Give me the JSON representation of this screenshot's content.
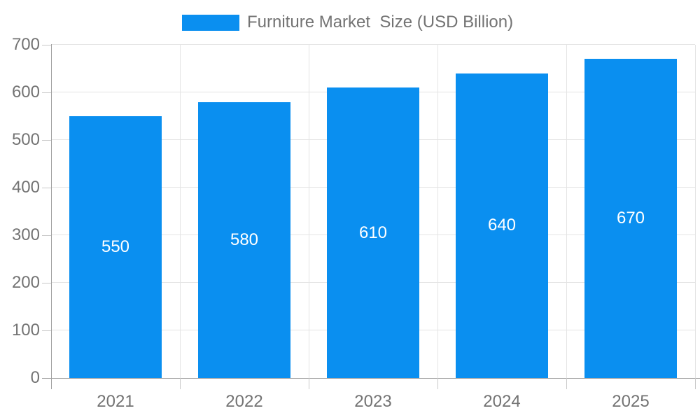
{
  "legend": {
    "label": "Furniture Market  Size (USD Billion)",
    "swatch_color": "#0a8ff0"
  },
  "chart_data": {
    "type": "bar",
    "title": "Furniture Market  Size (USD Billion)",
    "categories": [
      "2021",
      "2022",
      "2023",
      "2024",
      "2025"
    ],
    "values": [
      550,
      580,
      610,
      640,
      670
    ],
    "xlabel": "",
    "ylabel": "",
    "ylim": [
      0,
      700
    ],
    "yticks": [
      0,
      100,
      200,
      300,
      400,
      500,
      600,
      700
    ],
    "grid": true,
    "legend_position": "top-center",
    "value_labels": "centered-inside-bars",
    "bar_color": "#0a8ff0",
    "value_label_color": "#ffffff",
    "axis_label_color": "#737373",
    "grid_color": "#e4e4e4",
    "axis_line_color": "#a0a0a0",
    "tick_color": "#c9c9c9",
    "background": "#ffffff"
  }
}
